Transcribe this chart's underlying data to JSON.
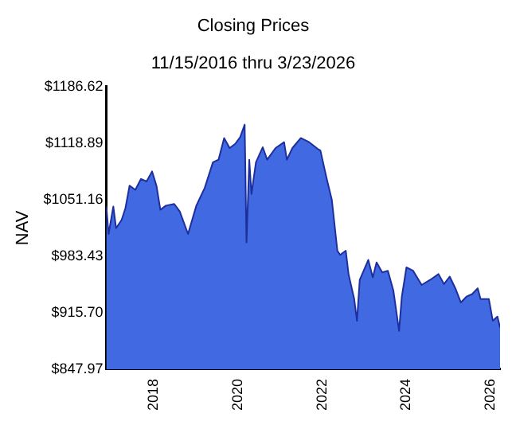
{
  "chart_data": {
    "type": "area",
    "title": "Closing Prices",
    "subtitle": "11/15/2016 thru 3/23/2026",
    "ylabel": "NAV",
    "x": [
      "2016-11-15",
      "2016-12-05",
      "2017-01-15",
      "2017-02-08",
      "2017-03-28",
      "2017-04-30",
      "2017-06-05",
      "2017-07-25",
      "2017-09-12",
      "2017-10-30",
      "2017-12-17",
      "2018-01-24",
      "2018-02-27",
      "2018-04-16",
      "2018-06-27",
      "2018-08-14",
      "2018-10-25",
      "2019-01-05",
      "2019-03-18",
      "2019-05-29",
      "2019-07-16",
      "2019-09-03",
      "2019-10-21",
      "2019-12-08",
      "2020-01-20",
      "2020-02-28",
      "2020-03-15",
      "2020-04-08",
      "2020-04-27",
      "2020-06-05",
      "2020-08-03",
      "2020-09-10",
      "2020-11-22",
      "2021-02-04",
      "2021-02-28",
      "2021-04-17",
      "2021-06-29",
      "2021-09-10",
      "2021-11-22",
      "2021-12-16",
      "2022-02-04",
      "2022-03-25",
      "2022-05-12",
      "2022-06-05",
      "2022-07-24",
      "2022-08-17",
      "2022-10-05",
      "2022-10-29",
      "2022-11-22",
      "2022-12-26",
      "2023-02-04",
      "2023-03-15",
      "2023-04-17",
      "2023-06-05",
      "2023-07-24",
      "2023-09-10",
      "2023-10-29",
      "2023-11-22",
      "2024-01-01",
      "2024-02-28",
      "2024-05-12",
      "2024-07-24",
      "2024-10-05",
      "2024-11-22",
      "2025-01-10",
      "2025-02-28",
      "2025-04-17",
      "2025-06-05",
      "2025-07-24",
      "2025-09-10",
      "2025-10-05",
      "2025-12-16",
      "2026-01-19",
      "2026-02-28",
      "2026-03-23"
    ],
    "series": [
      {
        "color": "#4169e1",
        "values": [
          1044,
          1010,
          1043,
          1017,
          1027,
          1041,
          1068,
          1063,
          1076,
          1073,
          1085,
          1068,
          1039,
          1044,
          1046,
          1037,
          1010,
          1044,
          1065,
          1096,
          1099,
          1125,
          1113,
          1118,
          1126,
          1141,
          1000,
          1099,
          1058,
          1096,
          1114,
          1099,
          1113,
          1120,
          1099,
          1113,
          1125,
          1120,
          1112,
          1110,
          1079,
          1051,
          990,
          985,
          990,
          962,
          932,
          906,
          955,
          966,
          979,
          958,
          976,
          964,
          966,
          942,
          894,
          935,
          970,
          966,
          949,
          955,
          962,
          950,
          959,
          945,
          928,
          935,
          938,
          945,
          932,
          932,
          906,
          911,
          898
        ]
      }
    ],
    "xlim": [
      "2016-11-15",
      "2026-03-23"
    ],
    "xticks": [
      "2018",
      "2020",
      "2022",
      "2024",
      "2026"
    ],
    "ylim": [
      847.97,
      1186.62
    ],
    "yticks": [
      {
        "value": 847.97,
        "label": "$847.97"
      },
      {
        "value": 915.7,
        "label": "$915.70"
      },
      {
        "value": 983.43,
        "label": "$983.43"
      },
      {
        "value": 1051.16,
        "label": "$1051.16"
      },
      {
        "value": 1118.89,
        "label": "$1118.89"
      },
      {
        "value": 1186.62,
        "label": "$1186.62"
      }
    ],
    "grid": false,
    "legend": false
  }
}
